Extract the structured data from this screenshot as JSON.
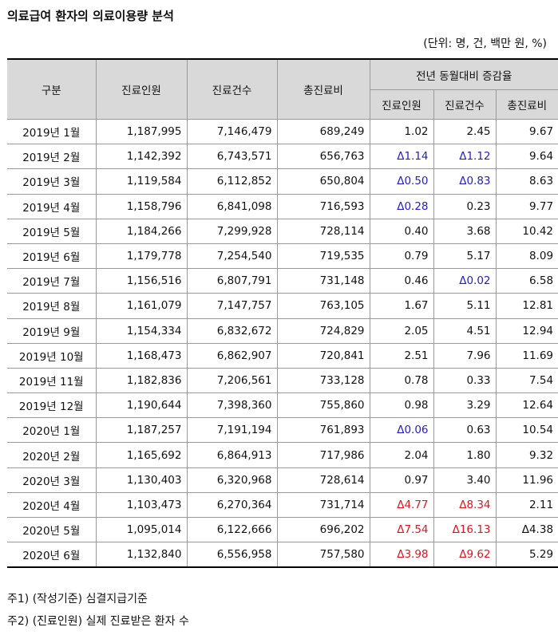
{
  "title": "의료급여 환자의 의료이용량 분석",
  "unit": "(단위: 명, 건, 백만 원, %)",
  "headers": {
    "category": "구분",
    "patients": "진료인원",
    "cases": "진료건수",
    "cost": "총진료비",
    "yoy": "전년 동월대비 증감율",
    "yoy_patients": "진료인원",
    "yoy_cases": "진료건수",
    "yoy_cost": "총진료비"
  },
  "rows": [
    {
      "period": "2019년 1월",
      "patients": "1,187,995",
      "cases": "7,146,479",
      "cost": "689,249",
      "yp": "1.02",
      "yc": "2.45",
      "yt": "9.67",
      "yp_s": "",
      "yc_s": "",
      "yt_s": ""
    },
    {
      "period": "2019년 2월",
      "patients": "1,142,392",
      "cases": "6,743,571",
      "cost": "656,763",
      "yp": "Δ1.14",
      "yc": "Δ1.12",
      "yt": "9.64",
      "yp_s": "blue",
      "yc_s": "blue",
      "yt_s": ""
    },
    {
      "period": "2019년 3월",
      "patients": "1,119,584",
      "cases": "6,112,852",
      "cost": "650,804",
      "yp": "Δ0.50",
      "yc": "Δ0.83",
      "yt": "8.63",
      "yp_s": "blue",
      "yc_s": "blue",
      "yt_s": ""
    },
    {
      "period": "2019년 4월",
      "patients": "1,158,796",
      "cases": "6,841,098",
      "cost": "716,593",
      "yp": "Δ0.28",
      "yc": "0.23",
      "yt": "9.77",
      "yp_s": "blue",
      "yc_s": "",
      "yt_s": ""
    },
    {
      "period": "2019년 5월",
      "patients": "1,184,266",
      "cases": "7,299,928",
      "cost": "728,114",
      "yp": "0.40",
      "yc": "3.68",
      "yt": "10.42",
      "yp_s": "",
      "yc_s": "",
      "yt_s": ""
    },
    {
      "period": "2019년 6월",
      "patients": "1,179,778",
      "cases": "7,254,540",
      "cost": "719,535",
      "yp": "0.79",
      "yc": "5.17",
      "yt": "8.09",
      "yp_s": "",
      "yc_s": "",
      "yt_s": ""
    },
    {
      "period": "2019년 7월",
      "patients": "1,156,516",
      "cases": "6,807,791",
      "cost": "731,148",
      "yp": "0.46",
      "yc": "Δ0.02",
      "yt": "6.58",
      "yp_s": "",
      "yc_s": "blue",
      "yt_s": ""
    },
    {
      "period": "2019년 8월",
      "patients": "1,161,079",
      "cases": "7,147,757",
      "cost": "763,105",
      "yp": "1.67",
      "yc": "5.11",
      "yt": "12.81",
      "yp_s": "",
      "yc_s": "",
      "yt_s": ""
    },
    {
      "period": "2019년 9월",
      "patients": "1,154,334",
      "cases": "6,832,672",
      "cost": "724,829",
      "yp": "2.05",
      "yc": "4.51",
      "yt": "12.94",
      "yp_s": "",
      "yc_s": "",
      "yt_s": ""
    },
    {
      "period": "2019년 10월",
      "patients": "1,168,473",
      "cases": "6,862,907",
      "cost": "720,841",
      "yp": "2.51",
      "yc": "7.96",
      "yt": "11.69",
      "yp_s": "",
      "yc_s": "",
      "yt_s": ""
    },
    {
      "period": "2019년 11월",
      "patients": "1,182,836",
      "cases": "7,206,561",
      "cost": "733,128",
      "yp": "0.78",
      "yc": "0.33",
      "yt": "7.54",
      "yp_s": "",
      "yc_s": "",
      "yt_s": ""
    },
    {
      "period": "2019년 12월",
      "patients": "1,190,644",
      "cases": "7,398,360",
      "cost": "755,860",
      "yp": "0.98",
      "yc": "3.29",
      "yt": "12.64",
      "yp_s": "",
      "yc_s": "",
      "yt_s": ""
    },
    {
      "period": "2020년 1월",
      "patients": "1,187,257",
      "cases": "7,191,194",
      "cost": "761,893",
      "yp": "Δ0.06",
      "yc": "0.63",
      "yt": "10.54",
      "yp_s": "blue",
      "yc_s": "",
      "yt_s": ""
    },
    {
      "period": "2020년 2월",
      "patients": "1,165,692",
      "cases": "6,864,913",
      "cost": "717,986",
      "yp": "2.04",
      "yc": "1.80",
      "yt": "9.32",
      "yp_s": "",
      "yc_s": "",
      "yt_s": ""
    },
    {
      "period": "2020년 3월",
      "patients": "1,130,403",
      "cases": "6,320,968",
      "cost": "728,614",
      "yp": "0.97",
      "yc": "3.40",
      "yt": "11.96",
      "yp_s": "",
      "yc_s": "",
      "yt_s": ""
    },
    {
      "period": "2020년 4월",
      "patients": "1,103,473",
      "cases": "6,270,364",
      "cost": "731,714",
      "yp": "Δ4.77",
      "yc": "Δ8.34",
      "yt": "2.11",
      "yp_s": "red",
      "yc_s": "red",
      "yt_s": ""
    },
    {
      "period": "2020년 5월",
      "patients": "1,095,014",
      "cases": "6,122,666",
      "cost": "696,202",
      "yp": "Δ7.54",
      "yc": "Δ16.13",
      "yt": "Δ4.38",
      "yp_s": "red",
      "yc_s": "red",
      "yt_s": ""
    },
    {
      "period": "2020년 6월",
      "patients": "1,132,840",
      "cases": "6,556,958",
      "cost": "757,580",
      "yp": "Δ3.98",
      "yc": "Δ9.62",
      "yt": "5.29",
      "yp_s": "red",
      "yc_s": "red",
      "yt_s": ""
    }
  ],
  "notes": [
    "주1) (작성기준) 심결지급기준",
    "주2) (진료인원) 실제 진료받은 환자 수"
  ],
  "colors": {
    "blue": "#1f1fc8",
    "red": "#e0161b",
    "header_bg": "#d9d9d9"
  }
}
